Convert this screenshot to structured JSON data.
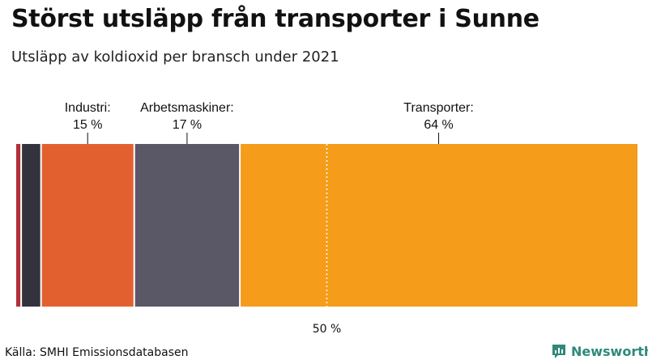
{
  "header": {
    "title": "Störst utsläpp från transporter i Sunne",
    "subtitle": "Utsläpp av koldioxid per bransch under 2021"
  },
  "footer": {
    "source": "Källa: SMHI Emissionsdatabasen",
    "brand": "Newsworthy",
    "brand_icon": "newsworthy-logo-icon",
    "brand_color": "#2e8a7a"
  },
  "chart_data": {
    "type": "bar",
    "orientation": "horizontal-stacked",
    "unit": "%",
    "xlim": [
      0,
      100
    ],
    "segments": [
      {
        "label": "",
        "value": 0.8,
        "color": "#b0303a",
        "annotation": ""
      },
      {
        "label": "",
        "value": 3.2,
        "color": "#33333d",
        "annotation": ""
      },
      {
        "label": "Industri:",
        "value": 15,
        "color": "#e2602f",
        "annotation": "15 %"
      },
      {
        "label": "Arbetsmaskiner:",
        "value": 17,
        "color": "#5a5866",
        "annotation": "17 %"
      },
      {
        "label": "Transporter:",
        "value": 64,
        "color": "#f59c1a",
        "annotation": "64 %"
      }
    ],
    "reference_line": {
      "value": 50,
      "label": "50 %"
    }
  }
}
